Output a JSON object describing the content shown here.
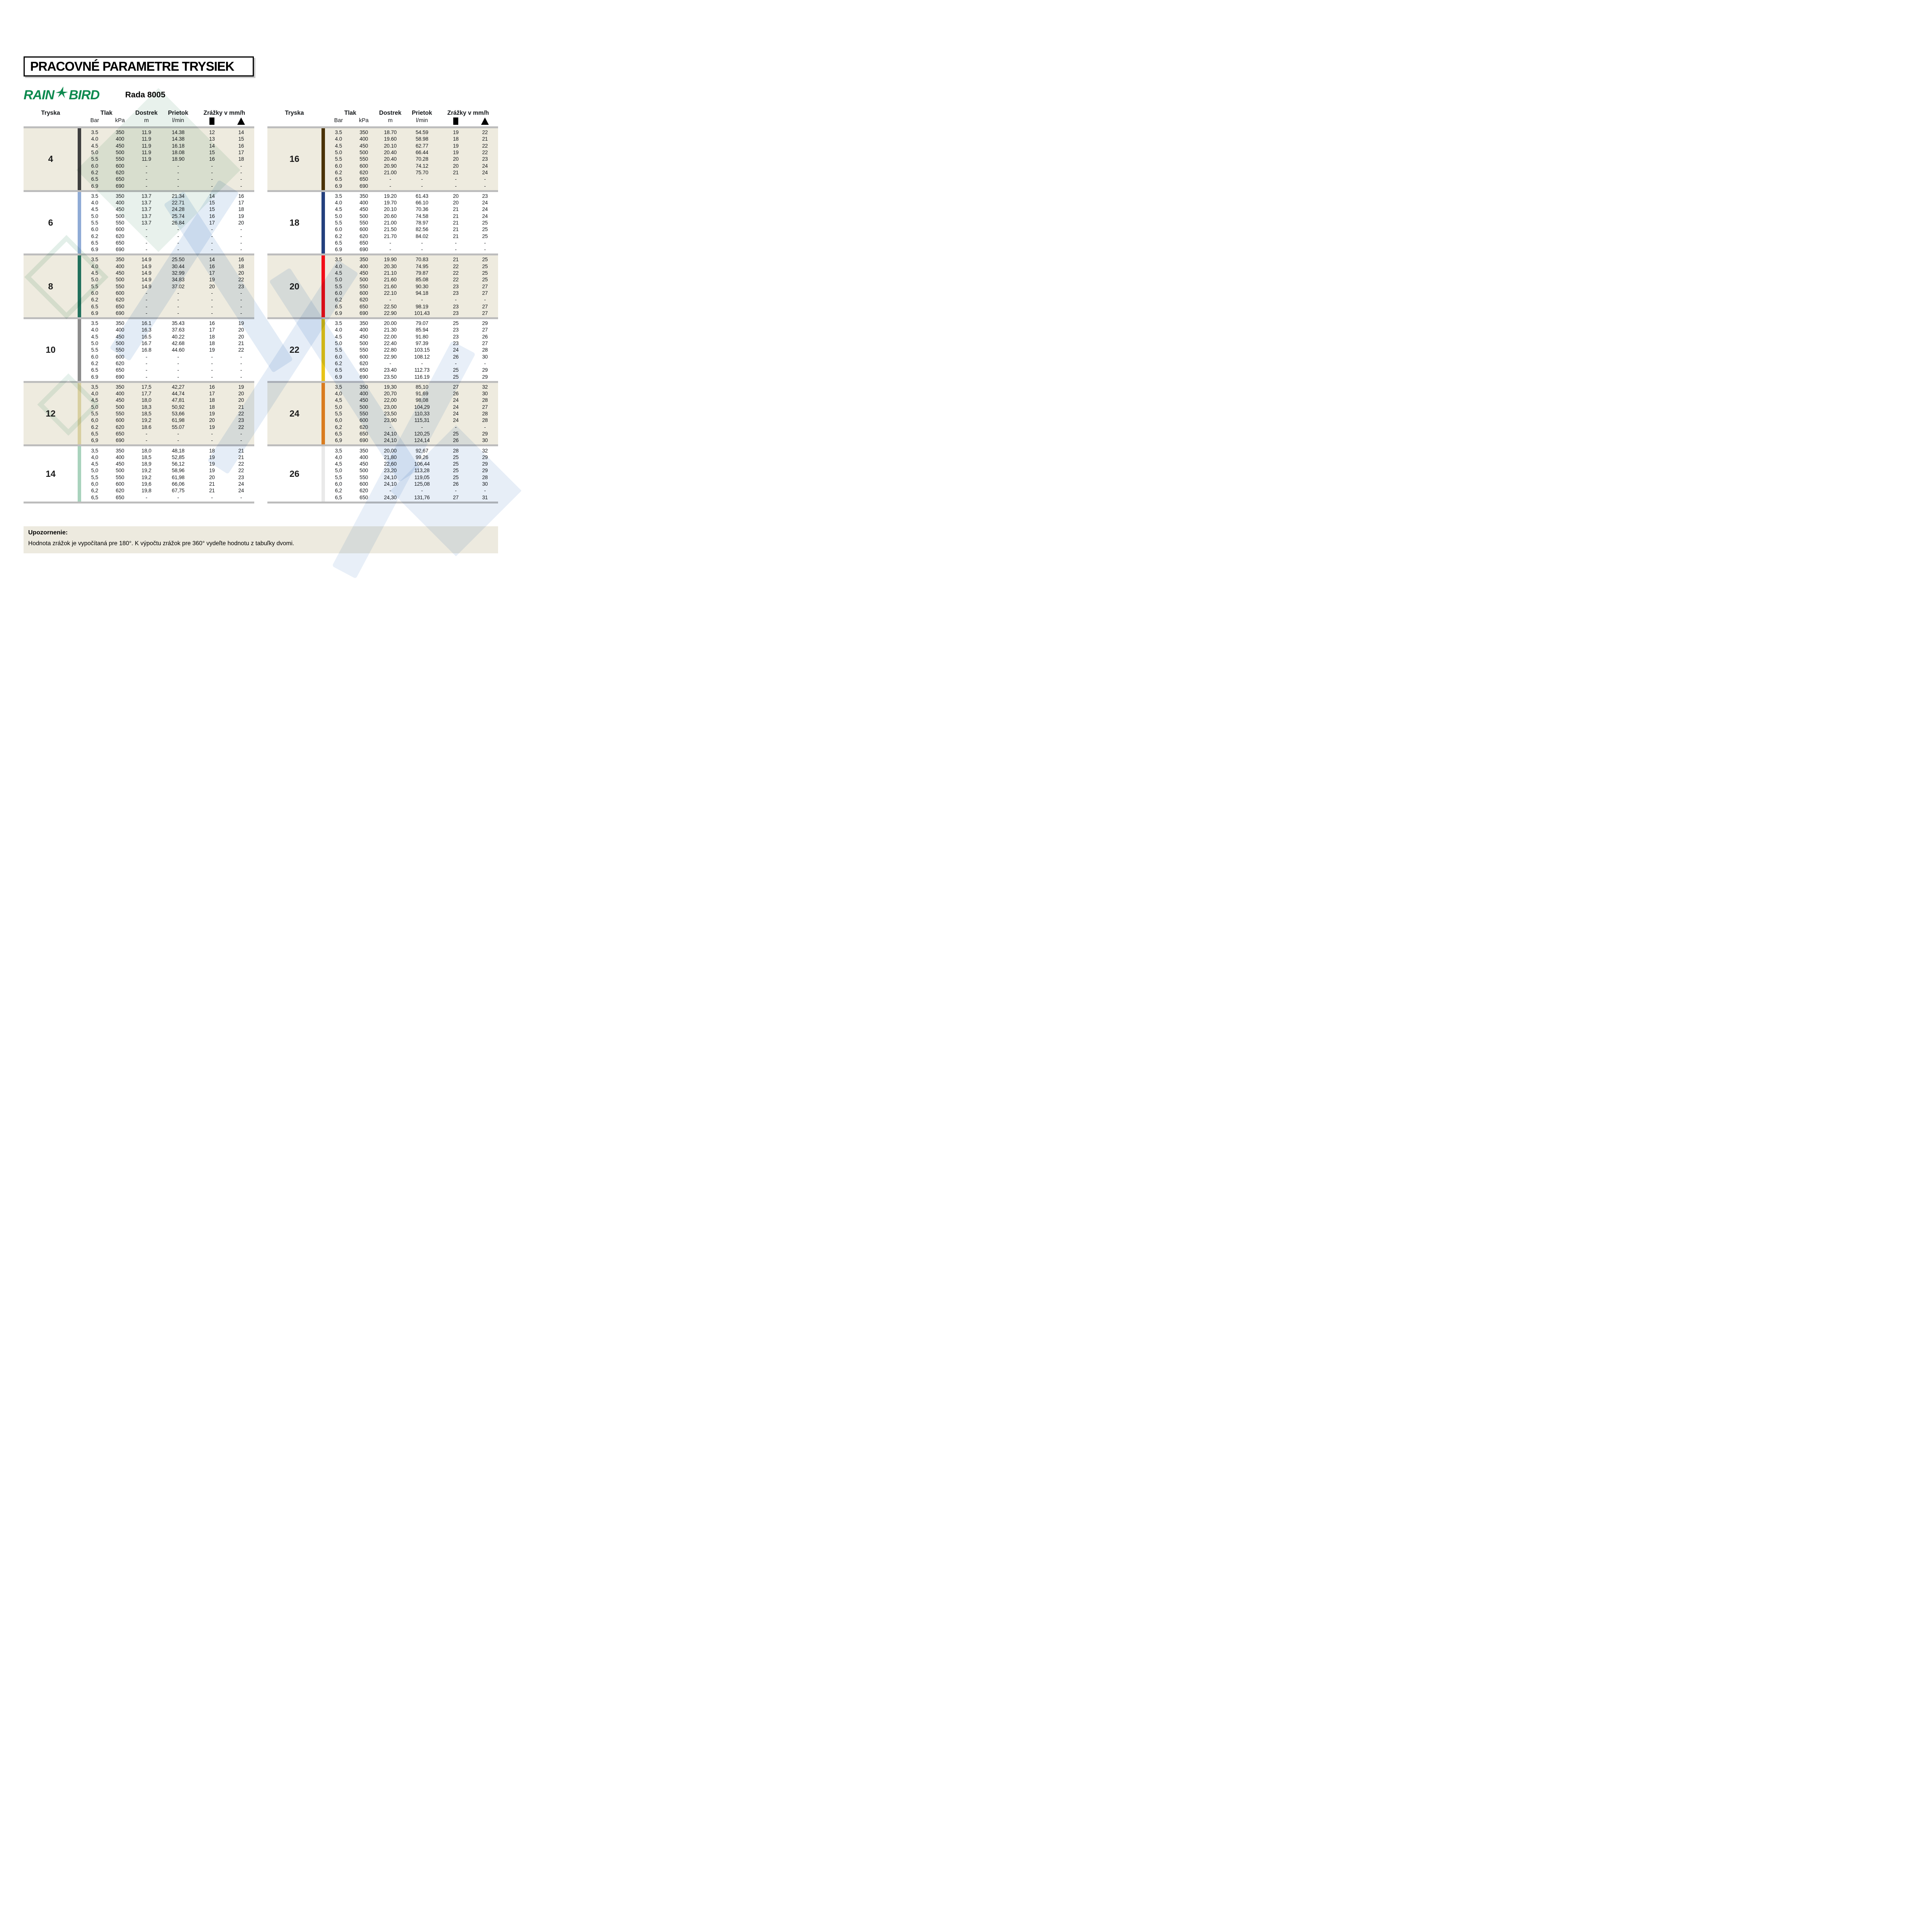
{
  "title": "PRACOVNÉ PARAMETRE TRYSIEK",
  "brand": {
    "logo_word1": "RAIN",
    "logo_word2": "BIRD",
    "bird_icon": "rainbird-bird-icon",
    "logo_color": "#0e8a4f",
    "series_label": "Rada 8005"
  },
  "columns": {
    "tryska": "Tryska",
    "tlak": "Tlak",
    "dostrek": "Dostrek",
    "prietok": "Prietok",
    "zrazky": "Zrážky v mm/h",
    "sub": {
      "bar": "Bar",
      "kpa": "kPa",
      "m": "m",
      "lmin": "l/min",
      "square_icon": "filled-square",
      "triangle_icon": "filled-triangle"
    }
  },
  "divider_color": "#bdbdbd",
  "shaded_block_color": "#eeebdf",
  "tables": {
    "left": [
      {
        "nozzle": "4",
        "bar_color": "#3f3f3f",
        "shaded": true,
        "rows": [
          [
            "3.5",
            "350",
            "11.9",
            "14.38",
            "12",
            "14"
          ],
          [
            "4.0",
            "400",
            "11.9",
            "14.38",
            "13",
            "15"
          ],
          [
            "4.5",
            "450",
            "11.9",
            "16.18",
            "14",
            "16"
          ],
          [
            "5.0",
            "500",
            "11.9",
            "18.08",
            "15",
            "17"
          ],
          [
            "5.5",
            "550",
            "11.9",
            "18.90",
            "16",
            "18"
          ],
          [
            "6.0",
            "600",
            "-",
            "-",
            "-",
            "-"
          ],
          [
            "6.2",
            "620",
            "-",
            "-",
            "-",
            "-"
          ],
          [
            "6.5",
            "650",
            "-",
            "-",
            "-",
            "-"
          ],
          [
            "6.9",
            "690",
            "-",
            "-",
            "-",
            "-"
          ]
        ]
      },
      {
        "nozzle": "6",
        "bar_color": "#8fabd6",
        "shaded": false,
        "rows": [
          [
            "3.5",
            "350",
            "13.7",
            "21.34",
            "14",
            "16"
          ],
          [
            "4.0",
            "400",
            "13.7",
            "22.71",
            "15",
            "17"
          ],
          [
            "4.5",
            "450",
            "13.7",
            "24.28",
            "15",
            "18"
          ],
          [
            "5.0",
            "500",
            "13.7",
            "25.74",
            "16",
            "19"
          ],
          [
            "5.5",
            "550",
            "13.7",
            "26.84",
            "17",
            "20"
          ],
          [
            "6.0",
            "600",
            "-",
            "-",
            "-",
            "-"
          ],
          [
            "6.2",
            "620",
            "-",
            "-",
            "-",
            "-"
          ],
          [
            "6.5",
            "650",
            "-",
            "-",
            "-",
            "-"
          ],
          [
            "6.9",
            "690",
            "-",
            "-",
            "-",
            "-"
          ]
        ]
      },
      {
        "nozzle": "8",
        "bar_color": "#21705c",
        "shaded": true,
        "rows": [
          [
            "3.5",
            "350",
            "14.9",
            "25.50",
            "14",
            "16"
          ],
          [
            "4.0",
            "400",
            "14.9",
            "30.44",
            "16",
            "18"
          ],
          [
            "4.5",
            "450",
            "14.9",
            "32.99",
            "17",
            "20"
          ],
          [
            "5.0",
            "500",
            "14.9",
            "34.83",
            "19",
            "22"
          ],
          [
            "5.5",
            "550",
            "14.9",
            "37.02",
            "20",
            "23"
          ],
          [
            "6.0",
            "600",
            "-",
            "-",
            "-",
            "-"
          ],
          [
            "6.2",
            "620",
            "-",
            "-",
            "-",
            "-"
          ],
          [
            "6.5",
            "650",
            "-",
            "-",
            "-",
            "-"
          ],
          [
            "6.9",
            "690",
            "-",
            "-",
            "-",
            "-"
          ]
        ]
      },
      {
        "nozzle": "10",
        "bar_color": "#8c8c8c",
        "shaded": false,
        "rows": [
          [
            "3.5",
            "350",
            "16.1",
            "35.43",
            "16",
            "19"
          ],
          [
            "4.0",
            "400",
            "16.3",
            "37.63",
            "17",
            "20"
          ],
          [
            "4.5",
            "450",
            "16.5",
            "40.22",
            "18",
            "20"
          ],
          [
            "5.0",
            "500",
            "16.7",
            "42.68",
            "18",
            "21"
          ],
          [
            "5.5",
            "550",
            "16.8",
            "44.60",
            "19",
            "22"
          ],
          [
            "6.0",
            "600",
            "-",
            "-",
            "-",
            "-"
          ],
          [
            "6.2",
            "620",
            "-",
            "-",
            "-",
            "-"
          ],
          [
            "6.5",
            "650",
            "-",
            "-",
            "-",
            "-"
          ],
          [
            "6.9",
            "690",
            "-",
            "-",
            "-",
            "-"
          ]
        ]
      },
      {
        "nozzle": "12",
        "bar_color": "#d8cfa0",
        "shaded": true,
        "rows": [
          [
            "3,5",
            "350",
            "17,5",
            "42,27",
            "16",
            "19"
          ],
          [
            "4,0",
            "400",
            "17,7",
            "44,74",
            "17",
            "20"
          ],
          [
            "4,5",
            "450",
            "18,0",
            "47,81",
            "18",
            "20"
          ],
          [
            "5,0",
            "500",
            "18,3",
            "50,92",
            "18",
            "21"
          ],
          [
            "5,5",
            "550",
            "18,5",
            "53,66",
            "19",
            "22"
          ],
          [
            "6,0",
            "600",
            "19,2",
            "61,98",
            "20",
            "23"
          ],
          [
            "6.2",
            "620",
            "18.6",
            "55.07",
            "19",
            "22"
          ],
          [
            "6,5",
            "650",
            "-",
            "-",
            "-",
            "-"
          ],
          [
            "6,9",
            "690",
            "-",
            "-",
            "-",
            "-"
          ]
        ]
      },
      {
        "nozzle": "14",
        "bar_color": "#a9d3bd",
        "shaded": false,
        "rows": [
          [
            "3,5",
            "350",
            "18,0",
            "48,18",
            "18",
            "21"
          ],
          [
            "4,0",
            "400",
            "18,5",
            "52,85",
            "19",
            "21"
          ],
          [
            "4,5",
            "450",
            "18,9",
            "56,12",
            "19",
            "22"
          ],
          [
            "5,0",
            "500",
            "19,2",
            "58,96",
            "19",
            "22"
          ],
          [
            "5,5",
            "550",
            "19,2",
            "61,98",
            "20",
            "23"
          ],
          [
            "6,0",
            "600",
            "19,6",
            "66,06",
            "21",
            "24"
          ],
          [
            "6,2",
            "620",
            "19,8",
            "67,75",
            "21",
            "24"
          ],
          [
            "6,5",
            "650",
            "-",
            "-",
            "-",
            "-"
          ]
        ]
      }
    ],
    "right": [
      {
        "nozzle": "16",
        "bar_color": "#4a3206",
        "shaded": true,
        "rows": [
          [
            "3.5",
            "350",
            "18.70",
            "54.59",
            "19",
            "22"
          ],
          [
            "4.0",
            "400",
            "19.60",
            "58.98",
            "18",
            "21"
          ],
          [
            "4.5",
            "450",
            "20.10",
            "62.77",
            "19",
            "22"
          ],
          [
            "5.0",
            "500",
            "20.40",
            "66.44",
            "19",
            "22"
          ],
          [
            "5.5",
            "550",
            "20.40",
            "70.28",
            "20",
            "23"
          ],
          [
            "6.0",
            "600",
            "20.90",
            "74.12",
            "20",
            "24"
          ],
          [
            "6.2",
            "620",
            "21.00",
            "75.70",
            "21",
            "24"
          ],
          [
            "6.5",
            "650",
            "-",
            "-",
            "-",
            "-"
          ],
          [
            "6.9",
            "690",
            "-",
            "-",
            "-",
            "-"
          ]
        ]
      },
      {
        "nozzle": "18",
        "bar_color": "#24407e",
        "shaded": false,
        "rows": [
          [
            "3.5",
            "350",
            "19.20",
            "61.43",
            "20",
            "23"
          ],
          [
            "4.0",
            "400",
            "19.70",
            "66.10",
            "20",
            "24"
          ],
          [
            "4.5",
            "450",
            "20.10",
            "70.36",
            "21",
            "24"
          ],
          [
            "5.0",
            "500",
            "20.60",
            "74.58",
            "21",
            "24"
          ],
          [
            "5.5",
            "550",
            "21.00",
            "78.97",
            "21",
            "25"
          ],
          [
            "6.0",
            "600",
            "21.50",
            "82.56",
            "21",
            "25"
          ],
          [
            "6.2",
            "620",
            "21.70",
            "84.02",
            "21",
            "25"
          ],
          [
            "6.5",
            "650",
            "-",
            "-",
            "-",
            "-"
          ],
          [
            "6.9",
            "690",
            "-",
            "-",
            "-",
            "-"
          ]
        ]
      },
      {
        "nozzle": "20",
        "bar_color": "#f20d18",
        "shaded": true,
        "rows": [
          [
            "3.5",
            "350",
            "19.90",
            "70.83",
            "21",
            "25"
          ],
          [
            "4.0",
            "400",
            "20.30",
            "74.95",
            "22",
            "25"
          ],
          [
            "4.5",
            "450",
            "21.10",
            "79.87",
            "22",
            "25"
          ],
          [
            "5.0",
            "500",
            "21.60",
            "85.08",
            "22",
            "25"
          ],
          [
            "5.5",
            "550",
            "21.60",
            "90.30",
            "23",
            "27"
          ],
          [
            "6.0",
            "600",
            "22.10",
            "94.18",
            "23",
            "27"
          ],
          [
            "6.2",
            "620",
            "-",
            "-",
            "-",
            "-"
          ],
          [
            "6.5",
            "650",
            "22.50",
            "98.19",
            "23",
            "27"
          ],
          [
            "6.9",
            "690",
            "22.90",
            "101.43",
            "23",
            "27"
          ]
        ]
      },
      {
        "nozzle": "22",
        "bar_color": "#e8c417",
        "shaded": false,
        "rows": [
          [
            "3.5",
            "350",
            "20.00",
            "79.07",
            "25",
            "29"
          ],
          [
            "4.0",
            "400",
            "21.30",
            "85.94",
            "23",
            "27"
          ],
          [
            "4.5",
            "450",
            "22.00",
            "91.80",
            "23",
            "26"
          ],
          [
            "5.0",
            "500",
            "22.40",
            "97.39",
            "23",
            "27"
          ],
          [
            "5.5",
            "550",
            "22.80",
            "103.15",
            "24",
            "28"
          ],
          [
            "6.0",
            "600",
            "22.90",
            "108.12",
            "26",
            "30"
          ],
          [
            "6.2",
            "620",
            "-",
            "-",
            "-",
            "-"
          ],
          [
            "6.5",
            "650",
            "23.40",
            "112.73",
            "25",
            "29"
          ],
          [
            "6.9",
            "690",
            "23.50",
            "116.19",
            "25",
            "29"
          ]
        ]
      },
      {
        "nozzle": "24",
        "bar_color": "#d97c1f",
        "shaded": true,
        "rows": [
          [
            "3,5",
            "350",
            "19,30",
            "85,10",
            "27",
            "32"
          ],
          [
            "4,0",
            "400",
            "20,70",
            "91,69",
            "26",
            "30"
          ],
          [
            "4,5",
            "450",
            "22,00",
            "98,08",
            "24",
            "28"
          ],
          [
            "5,0",
            "500",
            "23,00",
            "104,29",
            "24",
            "27"
          ],
          [
            "5,5",
            "550",
            "23,50",
            "110,33",
            "24",
            "28"
          ],
          [
            "6,0",
            "600",
            "23,90",
            "115,31",
            "24",
            "28"
          ],
          [
            "6,2",
            "620",
            "-",
            "-",
            "-",
            "-"
          ],
          [
            "6,5",
            "650",
            "24,10",
            "120,25",
            "25",
            "29"
          ],
          [
            "6,9",
            "690",
            "24,10",
            "124,14",
            "26",
            "30"
          ]
        ]
      },
      {
        "nozzle": "26",
        "bar_color": "#e9e9e9",
        "shaded": false,
        "rows": [
          [
            "3,5",
            "350",
            "20,00",
            "92,67",
            "28",
            "32"
          ],
          [
            "4,0",
            "400",
            "21,80",
            "99,26",
            "25",
            "29"
          ],
          [
            "4,5",
            "450",
            "22,60",
            "106,44",
            "25",
            "29"
          ],
          [
            "5,0",
            "500",
            "23,20",
            "113,28",
            "25",
            "29"
          ],
          [
            "5,5",
            "550",
            "24,10",
            "119,05",
            "25",
            "28"
          ],
          [
            "6,0",
            "600",
            "24,10",
            "125,08",
            "26",
            "30"
          ],
          [
            "6,2",
            "620",
            "-",
            "-",
            "-",
            "-"
          ],
          [
            "6,5",
            "650",
            "24,30",
            "131,76",
            "27",
            "31"
          ]
        ]
      }
    ]
  },
  "note": {
    "heading": "Upozornenie:",
    "text": "Hodnota zrážok je vypočítaná pre 180°. K výpočtu zrážok pre 360°  vydeľte hodnotu z tabuľky dvomi."
  }
}
